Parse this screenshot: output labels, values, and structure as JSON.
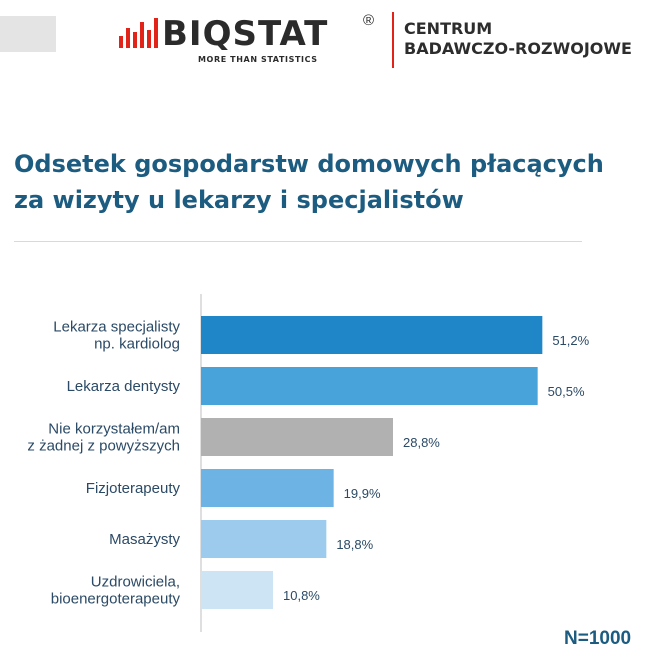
{
  "header": {
    "logo_text": "BIQSTAT",
    "logo_registered": "®",
    "logo_tagline": "MORE THAN STATISTICS",
    "subtitle_lines": [
      "CENTRUM",
      "BADAWCZO-ROZWOJOWE"
    ],
    "brand_red": "#e2231a"
  },
  "title_lines": [
    "Odsetek gospodarstw domowych płacących",
    "za wizyty u lekarzy i specjalistów"
  ],
  "chart_data": {
    "type": "bar",
    "orientation": "horizontal",
    "categories": [
      [
        "Lekarza specjalisty",
        "np. kardiolog"
      ],
      [
        "Lekarza dentysty"
      ],
      [
        "Nie korzystałem/am",
        "z żadnej z powyższych"
      ],
      [
        "Fizjoterapeuty"
      ],
      [
        "Masażysty"
      ],
      [
        "Uzdrowiciela,",
        "bioenergoterapeuty"
      ]
    ],
    "values": [
      51.2,
      50.5,
      28.8,
      19.9,
      18.8,
      10.8
    ],
    "value_labels": [
      "51,2%",
      "50,5%",
      "28,8%",
      "19,9%",
      "18,8%",
      "10,8%"
    ],
    "colors": [
      "#1f86c8",
      "#47a3da",
      "#b1b1b1",
      "#6db4e4",
      "#9ccbee",
      "#cde4f5"
    ],
    "xlim": [
      0,
      60
    ],
    "grid": false,
    "legend": "none"
  },
  "footnote": "N=1000"
}
